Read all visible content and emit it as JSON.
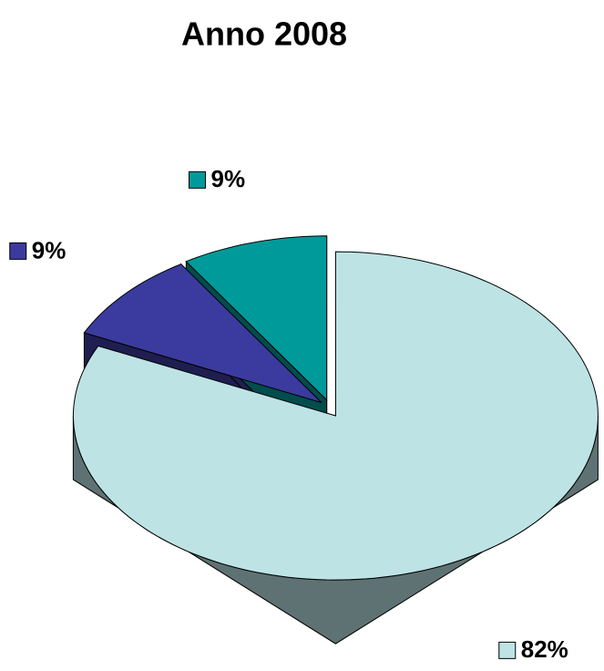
{
  "chart_data": {
    "type": "pie",
    "title": "Anno 2008",
    "values": [
      82,
      9,
      9
    ],
    "value_labels": [
      "82%",
      "9%",
      "9%"
    ],
    "colors": [
      "#bde3e5",
      "#3b3b9f",
      "#009a9a"
    ]
  }
}
